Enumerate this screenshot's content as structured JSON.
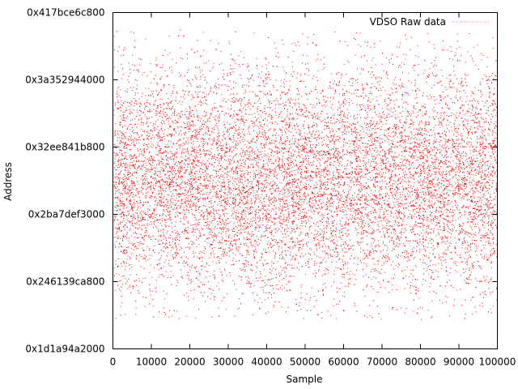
{
  "chart_data": {
    "type": "scatter",
    "xlabel": "Sample",
    "ylabel": "Address",
    "xlim": [
      0,
      100000
    ],
    "ylim_hex": [
      "0x1d1a94a2000",
      "0x417bce6c800"
    ],
    "x_ticks": [
      "0",
      "10000",
      "20000",
      "30000",
      "40000",
      "50000",
      "60000",
      "70000",
      "80000",
      "90000",
      "100000"
    ],
    "x_tick_values": [
      0,
      10000,
      20000,
      30000,
      40000,
      50000,
      60000,
      70000,
      80000,
      90000,
      100000
    ],
    "y_ticks": [
      "0x1d1a94a2000",
      "0x246139ca800",
      "0x2ba7def3000",
      "0x32ee841b800",
      "0x3a352944000",
      "0x417bce6c800"
    ],
    "grid": false,
    "legend_position": "top-right",
    "series": [
      {
        "name": "VDSO Raw data",
        "color": "#ff0000",
        "marker": "dot",
        "sample_count": 100000,
        "distribution": "approx. normal, centered near 0x2f4b3187800, spanning about 0x1f0…0x405…"
      }
    ]
  }
}
